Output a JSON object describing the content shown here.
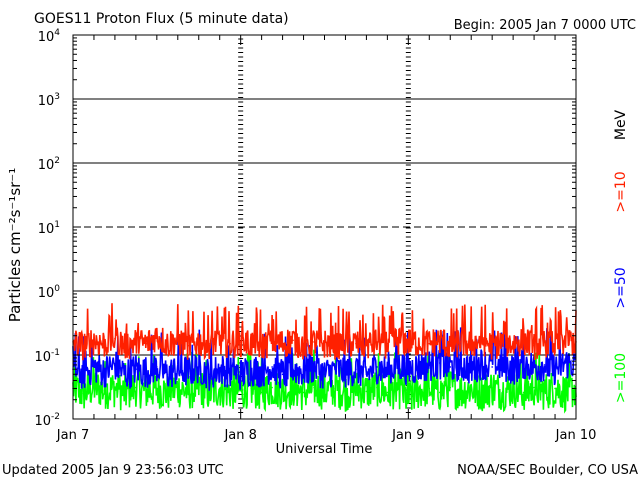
{
  "chart_data": {
    "type": "line",
    "title": "GOES11 Proton Flux (5 minute data)",
    "begin_label": "Begin: 2005 Jan 7 0000 UTC",
    "footer_left": "Updated 2005 Jan  9 23:56:03 UTC",
    "footer_right": "NOAA/SEC Boulder, CO USA",
    "xlabel": "Universal Time",
    "ylabel": "Particles cm⁻²s⁻¹sr⁻¹",
    "y_scale": "log",
    "ylim": [
      0.01,
      10000
    ],
    "xlim": [
      0,
      72
    ],
    "x_unit": "hours since Jan 7 0000 UTC",
    "x_ticks": [
      {
        "hours": 0,
        "label": "Jan 7"
      },
      {
        "hours": 24,
        "label": "Jan 8"
      },
      {
        "hours": 48,
        "label": "Jan 9"
      },
      {
        "hours": 72,
        "label": "Jan 10"
      }
    ],
    "y_ticks": [
      {
        "value": 0.01,
        "base": "10",
        "exp": "-2"
      },
      {
        "value": 0.1,
        "base": "10",
        "exp": "-1"
      },
      {
        "value": 1,
        "base": "10",
        "exp": "0"
      },
      {
        "value": 10,
        "base": "10",
        "exp": "1"
      },
      {
        "value": 100,
        "base": "10",
        "exp": "2"
      },
      {
        "value": 1000,
        "base": "10",
        "exp": "3"
      },
      {
        "value": 10000,
        "base": "10",
        "exp": "4"
      }
    ],
    "reference_lines": [
      {
        "value": 1000,
        "style": "solid"
      },
      {
        "value": 100,
        "style": "solid"
      },
      {
        "value": 10,
        "style": "dashed"
      },
      {
        "value": 1,
        "style": "solid"
      },
      {
        "value": 0.1,
        "style": "solid"
      }
    ],
    "grid": false,
    "legend_units": "MeV",
    "series": [
      {
        "name": ">=10",
        "color": "#ff2000",
        "x": [
          0,
          1.5,
          3,
          4.5,
          6,
          7.5,
          9,
          10.5,
          12,
          13.5,
          15,
          16.5,
          18,
          19.5,
          21,
          22.5,
          24,
          25.5,
          27,
          28.5,
          30,
          31.5,
          33,
          34.5,
          36,
          37.5,
          39,
          40.5,
          42,
          43.5,
          45,
          46.5,
          48,
          49.5,
          51,
          52.5,
          54,
          55.5,
          57,
          58.5,
          60,
          61.5,
          63,
          64.5,
          66,
          67.5,
          69,
          70.5,
          72
        ],
        "y": [
          0.16,
          0.14,
          0.17,
          0.15,
          0.18,
          0.14,
          0.16,
          0.15,
          0.2,
          0.15,
          0.17,
          0.14,
          0.16,
          0.15,
          0.17,
          0.15,
          0.16,
          0.15,
          0.14,
          0.16,
          0.15,
          0.17,
          0.14,
          0.16,
          0.15,
          0.14,
          0.16,
          0.15,
          0.14,
          0.16,
          0.15,
          0.17,
          0.16,
          0.16,
          0.15,
          0.17,
          0.14,
          0.16,
          0.15,
          0.17,
          0.14,
          0.16,
          0.15,
          0.17,
          0.14,
          0.16,
          0.15,
          0.17,
          0.16
        ]
      },
      {
        "name": ">=50",
        "color": "#0000ff",
        "x": [
          0,
          1.5,
          3,
          4.5,
          6,
          7.5,
          9,
          10.5,
          12,
          13.5,
          15,
          16.5,
          18,
          19.5,
          21,
          22.5,
          24,
          25.5,
          27,
          28.5,
          30,
          31.5,
          33,
          34.5,
          36,
          37.5,
          39,
          40.5,
          42,
          43.5,
          45,
          46.5,
          48,
          49.5,
          51,
          52.5,
          54,
          55.5,
          57,
          58.5,
          60,
          61.5,
          63,
          64.5,
          66,
          67.5,
          69,
          70.5,
          72
        ],
        "y": [
          0.06,
          0.05,
          0.065,
          0.055,
          0.07,
          0.05,
          0.06,
          0.055,
          0.065,
          0.05,
          0.06,
          0.055,
          0.065,
          0.05,
          0.06,
          0.055,
          0.05,
          0.06,
          0.055,
          0.065,
          0.05,
          0.06,
          0.055,
          0.065,
          0.05,
          0.06,
          0.055,
          0.06,
          0.05,
          0.065,
          0.055,
          0.07,
          0.06,
          0.065,
          0.07,
          0.075,
          0.065,
          0.07,
          0.06,
          0.075,
          0.065,
          0.07,
          0.06,
          0.075,
          0.065,
          0.07,
          0.06,
          0.075,
          0.07
        ]
      },
      {
        "name": ">=100",
        "color": "#00ff00",
        "x": [
          0,
          1.5,
          3,
          4.5,
          6,
          7.5,
          9,
          10.5,
          12,
          13.5,
          15,
          16.5,
          18,
          19.5,
          21,
          22.5,
          24,
          25.5,
          27,
          28.5,
          30,
          31.5,
          33,
          34.5,
          36,
          37.5,
          39,
          40.5,
          42,
          43.5,
          45,
          46.5,
          48,
          49.5,
          51,
          52.5,
          54,
          55.5,
          57,
          58.5,
          60,
          61.5,
          63,
          64.5,
          66,
          67.5,
          69,
          70.5,
          72
        ],
        "y": [
          0.03,
          0.025,
          0.032,
          0.028,
          0.03,
          0.025,
          0.031,
          0.027,
          0.03,
          0.026,
          0.03,
          0.027,
          0.031,
          0.026,
          0.03,
          0.027,
          0.028,
          0.03,
          0.026,
          0.031,
          0.027,
          0.03,
          0.026,
          0.031,
          0.027,
          0.03,
          0.026,
          0.03,
          0.027,
          0.031,
          0.026,
          0.03,
          0.02,
          0.028,
          0.03,
          0.026,
          0.031,
          0.027,
          0.03,
          0.026,
          0.031,
          0.027,
          0.03,
          0.026,
          0.031,
          0.027,
          0.03,
          0.026,
          0.03
        ]
      }
    ]
  }
}
